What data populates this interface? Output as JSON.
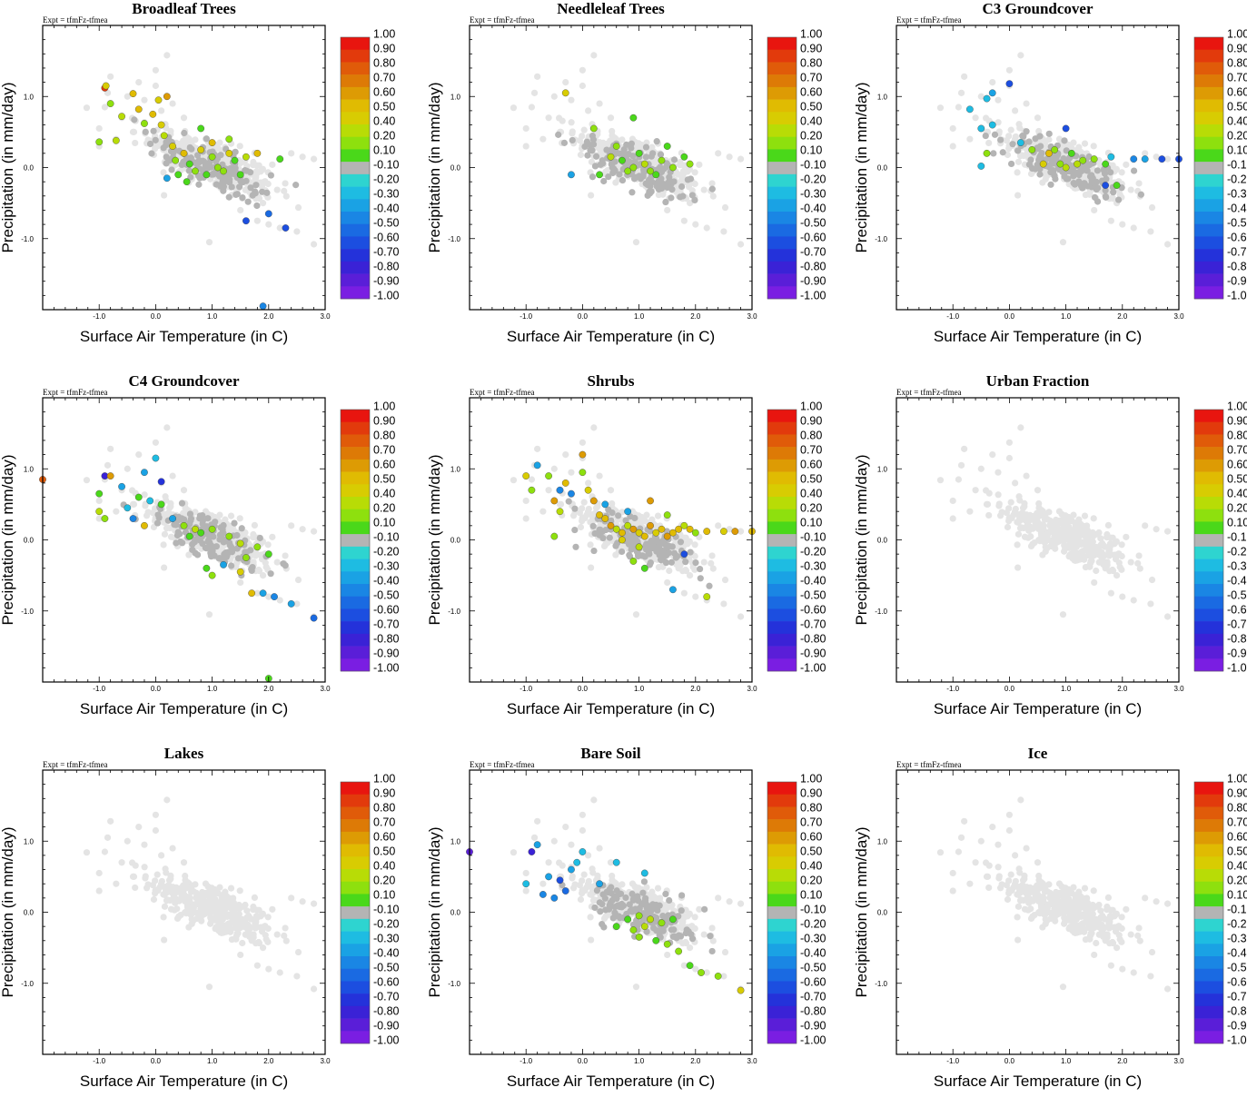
{
  "figure": {
    "experiment_label": "Expt = tfmFz-tfmea",
    "xlabel": "Surface Air Temperature (in C)",
    "ylabel": "Precipitation (in mm/day)"
  },
  "colors": {
    "background_points": "#e4e4e4",
    "neutral_points": "#b4b4b4",
    "frame": "#000000",
    "colorbar": [
      "#e8150f",
      "#e23a0c",
      "#e05b09",
      "#dd7a06",
      "#dd9b04",
      "#e0bb02",
      "#d8cc02",
      "#b8dc06",
      "#8ee00e",
      "#4ad81a",
      "#b4b4b4",
      "#2ed4d0",
      "#1ebce2",
      "#1aa2e4",
      "#1a86e4",
      "#1a6ae2",
      "#1c4ee0",
      "#2432da",
      "#3a22d6",
      "#5a1ed8",
      "#7a1ee2"
    ]
  },
  "colorbar_labels": [
    "1.00",
    "0.90",
    "0.80",
    "0.70",
    "0.60",
    "0.50",
    "0.40",
    "0.20",
    "0.10",
    "-0.10",
    "-0.20",
    "-0.30",
    "-0.40",
    "-0.50",
    "-0.60",
    "-0.70",
    "-0.80",
    "-0.90",
    "-1.00"
  ],
  "chart_data": [
    {
      "type": "scatter",
      "title": "Broadleaf Trees",
      "xticks": [
        "-1.0",
        "0.0",
        "1.0",
        "2.0",
        "3.0"
      ],
      "yticks": [
        "1.0",
        "0.0",
        "-1.0"
      ],
      "xlim": [
        -2,
        3
      ],
      "ylim": [
        -2,
        2
      ],
      "points": [
        [
          -0.9,
          1.12,
          0.9
        ],
        [
          -0.88,
          1.15,
          0.45
        ],
        [
          -0.4,
          1.04,
          0.55
        ],
        [
          -0.3,
          0.82,
          0.55
        ],
        [
          -0.6,
          0.72,
          0.35
        ],
        [
          -1,
          0.36,
          0.25
        ],
        [
          -0.7,
          0.38,
          0.3
        ],
        [
          -0.2,
          0.62,
          0.2
        ],
        [
          -0.05,
          0.75,
          0.5
        ],
        [
          0.05,
          0.95,
          0.45
        ],
        [
          0.1,
          0.6,
          0.45
        ],
        [
          0.3,
          0.3,
          0.4
        ],
        [
          0.5,
          0.2,
          0.5
        ],
        [
          0.8,
          0.25,
          0.4
        ],
        [
          1,
          0.15,
          0.25
        ],
        [
          1.3,
          0.2,
          0.45
        ],
        [
          1.6,
          0.15,
          0.3
        ],
        [
          1.8,
          0.2,
          0.55
        ],
        [
          2.2,
          0.12,
          0.15
        ],
        [
          0.6,
          0.05,
          0.15
        ],
        [
          0.7,
          -0.05,
          0.2
        ],
        [
          0.9,
          -0.1,
          0.15
        ],
        [
          1.1,
          0.0,
          0.2
        ],
        [
          1.2,
          -0.05,
          0.2
        ],
        [
          0.4,
          -0.1,
          0.15
        ],
        [
          1.5,
          -0.1,
          0.15
        ],
        [
          0.2,
          -0.15,
          -0.25
        ],
        [
          1.6,
          -0.75,
          -0.55
        ],
        [
          2,
          -0.65,
          -0.45
        ],
        [
          2.3,
          -0.85,
          -0.6
        ],
        [
          0.8,
          0.55,
          0.15
        ],
        [
          1.3,
          0.4,
          0.2
        ],
        [
          0.2,
          1.0,
          0.6
        ],
        [
          -0.8,
          0.9,
          0.25
        ],
        [
          1.9,
          -1.95,
          -0.4
        ],
        [
          0.15,
          0.45,
          0.35
        ],
        [
          1.0,
          0.35,
          0.55
        ],
        [
          0.55,
          -0.2,
          0.15
        ],
        [
          1.4,
          0.1,
          0.15
        ],
        [
          0.35,
          0.1,
          0.2
        ]
      ]
    },
    {
      "type": "scatter",
      "title": "Needleleaf Trees",
      "xticks": [
        "-1.0",
        "0.0",
        "1.0",
        "2.0",
        "3.0"
      ],
      "yticks": [
        "1.0",
        "0.0",
        "-1.0"
      ],
      "xlim": [
        -2,
        3
      ],
      "ylim": [
        -2,
        2
      ],
      "points": [
        [
          -0.3,
          1.05,
          0.45
        ],
        [
          0.2,
          0.55,
          0.25
        ],
        [
          0.7,
          0.1,
          0.15
        ],
        [
          0.9,
          0.0,
          0.25
        ],
        [
          1.1,
          0.05,
          0.3
        ],
        [
          1.2,
          -0.05,
          0.25
        ],
        [
          1.4,
          0.1,
          0.2
        ],
        [
          1.6,
          0.0,
          0.2
        ],
        [
          1.8,
          0.15,
          0.15
        ],
        [
          0.5,
          0.15,
          0.3
        ],
        [
          0.6,
          0.3,
          0.2
        ],
        [
          1.0,
          0.2,
          0.15
        ],
        [
          1.5,
          0.3,
          0.15
        ],
        [
          0.9,
          0.7,
          0.15
        ],
        [
          0.3,
          -0.1,
          0.15
        ],
        [
          -0.2,
          -0.1,
          -0.25
        ],
        [
          1.3,
          -0.1,
          0.15
        ],
        [
          0.8,
          -0.05,
          0.25
        ],
        [
          1.9,
          0.05,
          0.2
        ]
      ]
    },
    {
      "type": "scatter",
      "title": "C3 Groundcover",
      "xticks": [
        "-1.0",
        "0.0",
        "1.0",
        "2.0",
        "3.0"
      ],
      "yticks": [
        "1.0",
        "0.0",
        "-1.0"
      ],
      "xlim": [
        -2,
        3
      ],
      "ylim": [
        -2,
        2
      ],
      "points": [
        [
          0.0,
          1.18,
          -0.6
        ],
        [
          -0.3,
          1.05,
          -0.25
        ],
        [
          -0.4,
          0.97,
          -0.2
        ],
        [
          -0.5,
          0.55,
          -0.2
        ],
        [
          -0.3,
          0.6,
          -0.2
        ],
        [
          -0.7,
          0.82,
          -0.2
        ],
        [
          -0.4,
          0.2,
          0.2
        ],
        [
          -0.5,
          0.02,
          -0.2
        ],
        [
          0.2,
          0.35,
          -0.2
        ],
        [
          1.0,
          0.55,
          -0.6
        ],
        [
          0.4,
          0.25,
          0.2
        ],
        [
          0.7,
          0.2,
          0.55
        ],
        [
          0.8,
          0.25,
          0.25
        ],
        [
          1.1,
          0.2,
          0.15
        ],
        [
          1.3,
          0.1,
          0.2
        ],
        [
          1.5,
          0.12,
          0.2
        ],
        [
          0.9,
          0.05,
          0.2
        ],
        [
          1.2,
          0.05,
          0.3
        ],
        [
          1.7,
          0.05,
          0.15
        ],
        [
          1.8,
          0.15,
          -0.2
        ],
        [
          2.2,
          0.12,
          -0.4
        ],
        [
          2.4,
          0.12,
          -0.3
        ],
        [
          2.7,
          0.12,
          -0.55
        ],
        [
          3.0,
          0.12,
          -0.55
        ],
        [
          1.7,
          -0.25,
          -0.6
        ],
        [
          1.9,
          -0.25,
          0.15
        ],
        [
          0.6,
          0.05,
          0.4
        ],
        [
          1.0,
          0.0,
          0.3
        ]
      ]
    },
    {
      "type": "scatter",
      "title": "C4 Groundcover",
      "xticks": [
        "-1.0",
        "0.0",
        "1.0",
        "2.0",
        "3.0"
      ],
      "yticks": [
        "1.0",
        "0.0",
        "-1.0"
      ],
      "xlim": [
        -2,
        3
      ],
      "ylim": [
        -2,
        2
      ],
      "points": [
        [
          -2,
          0.85,
          0.8
        ],
        [
          -0.9,
          0.9,
          -0.75
        ],
        [
          -0.8,
          0.9,
          0.6
        ],
        [
          -1,
          0.65,
          0.15
        ],
        [
          -1,
          0.4,
          0.3
        ],
        [
          -0.6,
          0.75,
          -0.25
        ],
        [
          -0.2,
          0.95,
          -0.3
        ],
        [
          0.0,
          1.15,
          -0.2
        ],
        [
          0.1,
          0.82,
          -0.65
        ],
        [
          -0.1,
          0.55,
          -0.2
        ],
        [
          -0.4,
          0.3,
          -0.4
        ],
        [
          -0.2,
          0.2,
          0.5
        ],
        [
          0.1,
          0.5,
          0.15
        ],
        [
          -0.3,
          0.6,
          0.15
        ],
        [
          0.3,
          0.3,
          -0.25
        ],
        [
          0.5,
          0.2,
          0.2
        ],
        [
          0.7,
          0.15,
          0.35
        ],
        [
          0.8,
          0.1,
          0.15
        ],
        [
          1.0,
          0.15,
          0.25
        ],
        [
          1.3,
          0.05,
          0.2
        ],
        [
          1.5,
          -0.05,
          0.3
        ],
        [
          1.8,
          -0.1,
          0.2
        ],
        [
          1.6,
          -0.25,
          0.2
        ],
        [
          2.0,
          -0.2,
          0.15
        ],
        [
          1.2,
          -0.35,
          -0.3
        ],
        [
          1.5,
          -0.45,
          0.45
        ],
        [
          1.7,
          -0.75,
          0.55
        ],
        [
          1.9,
          -0.75,
          -0.3
        ],
        [
          2.1,
          -0.8,
          -0.4
        ],
        [
          2.4,
          -0.9,
          -0.3
        ],
        [
          2.8,
          -1.1,
          -0.45
        ],
        [
          1.0,
          -0.5,
          0.2
        ],
        [
          0.9,
          -0.4,
          0.15
        ],
        [
          -0.9,
          0.3,
          0.2
        ],
        [
          0.6,
          0.05,
          0.15
        ],
        [
          -0.5,
          0.45,
          -0.2
        ],
        [
          2.0,
          -1.95,
          0.15
        ]
      ]
    },
    {
      "type": "scatter",
      "title": "Shrubs",
      "xticks": [
        "-1.0",
        "0.0",
        "1.0",
        "2.0",
        "3.0"
      ],
      "yticks": [
        "1.0",
        "0.0",
        "-1.0"
      ],
      "xlim": [
        -2,
        3
      ],
      "ylim": [
        -2,
        2
      ],
      "points": [
        [
          -1,
          0.9,
          0.4
        ],
        [
          -0.9,
          0.7,
          0.25
        ],
        [
          -0.8,
          1.05,
          -0.3
        ],
        [
          -0.6,
          0.9,
          0.25
        ],
        [
          -0.3,
          0.8,
          0.5
        ],
        [
          -0.2,
          0.65,
          -0.35
        ],
        [
          0.0,
          1.2,
          0.6
        ],
        [
          0.0,
          0.95,
          0.2
        ],
        [
          0.1,
          0.7,
          0.4
        ],
        [
          -0.5,
          0.55,
          0.65
        ],
        [
          -0.4,
          0.4,
          0.3
        ],
        [
          -0.5,
          0.05,
          0.2
        ],
        [
          0.2,
          0.55,
          0.6
        ],
        [
          0.3,
          0.35,
          0.55
        ],
        [
          0.4,
          0.3,
          0.5
        ],
        [
          0.5,
          0.2,
          0.6
        ],
        [
          0.6,
          0.15,
          0.3
        ],
        [
          0.7,
          0.1,
          0.55
        ],
        [
          0.8,
          0.2,
          0.35
        ],
        [
          0.9,
          0.15,
          0.6
        ],
        [
          1.0,
          0.1,
          0.45
        ],
        [
          1.1,
          0.05,
          0.55
        ],
        [
          1.2,
          0.2,
          0.65
        ],
        [
          1.3,
          0.1,
          0.4
        ],
        [
          1.4,
          0.15,
          0.55
        ],
        [
          1.5,
          0.05,
          0.65
        ],
        [
          1.6,
          0.1,
          0.5
        ],
        [
          1.7,
          0.15,
          0.55
        ],
        [
          1.8,
          0.2,
          0.3
        ],
        [
          1.9,
          0.15,
          0.55
        ],
        [
          2.0,
          0.1,
          0.2
        ],
        [
          2.2,
          0.12,
          0.55
        ],
        [
          2.5,
          0.12,
          0.4
        ],
        [
          2.7,
          0.12,
          0.6
        ],
        [
          3.0,
          0.12,
          0.55
        ],
        [
          1.8,
          -0.2,
          -0.55
        ],
        [
          1.6,
          -0.7,
          -0.3
        ],
        [
          2.2,
          -0.8,
          0.3
        ],
        [
          1.1,
          -0.4,
          0.15
        ],
        [
          0.9,
          -0.3,
          0.2
        ],
        [
          0.8,
          0.4,
          -0.25
        ],
        [
          1.2,
          0.55,
          0.65
        ],
        [
          1.5,
          0.35,
          0.2
        ],
        [
          0.4,
          0.5,
          -0.3
        ],
        [
          0.7,
          0.0,
          0.45
        ],
        [
          1.0,
          -0.1,
          0.3
        ],
        [
          -0.4,
          0.7,
          -0.4
        ]
      ]
    },
    {
      "type": "scatter",
      "title": "Urban Fraction",
      "xticks": [
        "-1.0",
        "0.0",
        "1.0",
        "2.0",
        "3.0"
      ],
      "yticks": [
        "1.0",
        "0.0",
        "-1.0"
      ],
      "xlim": [
        -2,
        3
      ],
      "ylim": [
        -2,
        2
      ],
      "points": []
    },
    {
      "type": "scatter",
      "title": "Lakes",
      "xticks": [
        "-1.0",
        "0.0",
        "1.0",
        "2.0",
        "3.0"
      ],
      "yticks": [
        "1.0",
        "0.0",
        "-1.0"
      ],
      "xlim": [
        -2,
        3
      ],
      "ylim": [
        -2,
        2
      ],
      "points": []
    },
    {
      "type": "scatter",
      "title": "Bare Soil",
      "xticks": [
        "-1.0",
        "0.0",
        "1.0",
        "2.0",
        "3.0"
      ],
      "yticks": [
        "1.0",
        "0.0",
        "-1.0"
      ],
      "xlim": [
        -2,
        3
      ],
      "ylim": [
        -2,
        2
      ],
      "points": [
        [
          -2,
          0.85,
          -0.85
        ],
        [
          -0.9,
          0.85,
          -0.75
        ],
        [
          -0.8,
          0.95,
          -0.25
        ],
        [
          -1,
          0.4,
          -0.2
        ],
        [
          -0.6,
          0.5,
          -0.3
        ],
        [
          -0.7,
          0.25,
          -0.35
        ],
        [
          -0.5,
          0.2,
          -0.4
        ],
        [
          -0.4,
          0.45,
          -0.6
        ],
        [
          -0.3,
          0.3,
          -0.5
        ],
        [
          -0.2,
          0.6,
          -0.3
        ],
        [
          -0.1,
          0.7,
          -0.2
        ],
        [
          0.0,
          0.85,
          -0.2
        ],
        [
          0.3,
          0.4,
          -0.3
        ],
        [
          0.6,
          0.7,
          -0.2
        ],
        [
          1.1,
          0.55,
          -0.2
        ],
        [
          0.8,
          -0.1,
          0.15
        ],
        [
          1.0,
          -0.05,
          0.2
        ],
        [
          1.2,
          -0.1,
          0.3
        ],
        [
          1.4,
          -0.15,
          0.2
        ],
        [
          1.6,
          -0.1,
          0.15
        ],
        [
          1.0,
          -0.35,
          0.2
        ],
        [
          1.3,
          -0.4,
          0.15
        ],
        [
          1.5,
          -0.45,
          0.25
        ],
        [
          1.7,
          -0.55,
          0.2
        ],
        [
          1.9,
          -0.75,
          0.15
        ],
        [
          2.1,
          -0.85,
          0.2
        ],
        [
          2.4,
          -0.9,
          0.25
        ],
        [
          2.8,
          -1.1,
          0.4
        ],
        [
          0.9,
          -0.25,
          0.2
        ],
        [
          1.1,
          -0.2,
          0.3
        ],
        [
          0.6,
          -0.2,
          0.15
        ]
      ]
    },
    {
      "type": "scatter",
      "title": "Ice",
      "xticks": [
        "-1.0",
        "0.0",
        "1.0",
        "2.0",
        "3.0"
      ],
      "yticks": [
        "1.0",
        "0.0",
        "-1.0"
      ],
      "xlim": [
        -2,
        3
      ],
      "ylim": [
        -2,
        2
      ],
      "points": []
    }
  ]
}
